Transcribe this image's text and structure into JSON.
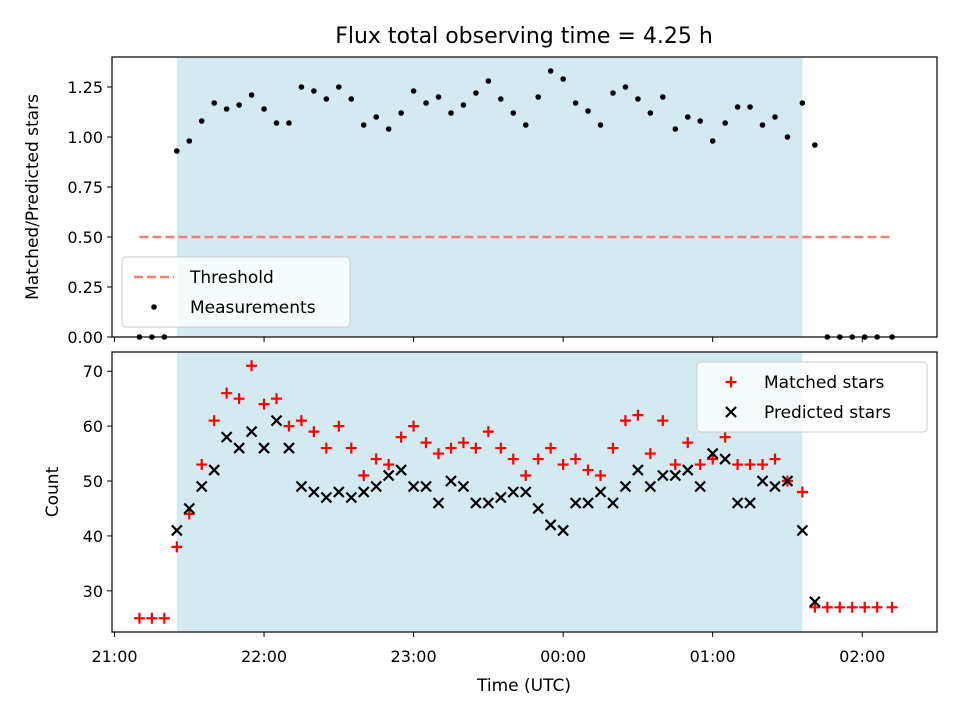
{
  "chart_data": {
    "type": "scatter",
    "title": "Flux total observing time = 4.25 h",
    "xlabel": "Time (UTC)",
    "x_ticks": [
      "21:00",
      "22:00",
      "23:00",
      "00:00",
      "01:00",
      "02:00"
    ],
    "x_range_hours": [
      20.9833,
      26.5
    ],
    "observing_window": {
      "start": "21:25",
      "end": "01:36",
      "color": "#d3eaf0"
    },
    "panels": [
      {
        "ylabel": "Matched/Predicted stars",
        "ylim": [
          0,
          1.4
        ],
        "y_ticks": [
          "0.00",
          "0.25",
          "0.50",
          "0.75",
          "1.00",
          "1.25"
        ],
        "legend": {
          "placement": "lower-left",
          "entries": [
            "Threshold",
            "Measurements"
          ]
        },
        "series": [
          {
            "name": "Threshold",
            "style": "dashed-line",
            "color": "#f08080",
            "x": [
              "21:10",
              "02:12"
            ],
            "y": [
              0.5,
              0.5
            ]
          },
          {
            "name": "Measurements",
            "style": "dot",
            "color": "#000000",
            "x": [
              "21:10",
              "21:15",
              "21:20",
              "21:25",
              "21:30",
              "21:35",
              "21:40",
              "21:45",
              "21:50",
              "21:55",
              "22:00",
              "22:05",
              "22:10",
              "22:15",
              "22:20",
              "22:25",
              "22:30",
              "22:35",
              "22:40",
              "22:45",
              "22:50",
              "22:55",
              "23:00",
              "23:05",
              "23:10",
              "23:15",
              "23:20",
              "23:25",
              "23:30",
              "23:35",
              "23:40",
              "23:45",
              "23:50",
              "23:55",
              "00:00",
              "00:05",
              "00:10",
              "00:15",
              "00:20",
              "00:25",
              "00:30",
              "00:35",
              "00:40",
              "00:45",
              "00:50",
              "00:55",
              "01:00",
              "01:05",
              "01:10",
              "01:15",
              "01:20",
              "01:25",
              "01:30",
              "01:36",
              "01:41",
              "01:46",
              "01:51",
              "01:56",
              "02:01",
              "02:06",
              "02:12"
            ],
            "y": [
              0.0,
              0.0,
              0.0,
              0.93,
              0.98,
              1.08,
              1.17,
              1.14,
              1.16,
              1.21,
              1.14,
              1.07,
              1.07,
              1.25,
              1.23,
              1.19,
              1.25,
              1.19,
              1.06,
              1.1,
              1.04,
              1.12,
              1.23,
              1.17,
              1.2,
              1.12,
              1.16,
              1.22,
              1.28,
              1.19,
              1.12,
              1.06,
              1.2,
              1.33,
              1.29,
              1.17,
              1.13,
              1.06,
              1.22,
              1.25,
              1.19,
              1.12,
              1.2,
              1.04,
              1.1,
              1.08,
              0.98,
              1.07,
              1.15,
              1.15,
              1.06,
              1.1,
              1.0,
              1.17,
              0.96,
              0.0,
              0.0,
              0.0,
              0.0,
              0.0,
              0.0
            ]
          }
        ]
      },
      {
        "ylabel": "Count",
        "ylim": [
          22.5,
          73.5
        ],
        "y_ticks": [
          "30",
          "40",
          "50",
          "60",
          "70"
        ],
        "legend": {
          "placement": "upper-right",
          "entries": [
            "Matched stars",
            "Predicted stars"
          ]
        },
        "series": [
          {
            "name": "Matched stars",
            "marker": "+",
            "color": "#ff0000",
            "x": [
              "21:10",
              "21:15",
              "21:20",
              "21:25",
              "21:30",
              "21:35",
              "21:40",
              "21:45",
              "21:50",
              "21:55",
              "22:00",
              "22:05",
              "22:10",
              "22:15",
              "22:20",
              "22:25",
              "22:30",
              "22:35",
              "22:40",
              "22:45",
              "22:50",
              "22:55",
              "23:00",
              "23:05",
              "23:10",
              "23:15",
              "23:20",
              "23:25",
              "23:30",
              "23:35",
              "23:40",
              "23:45",
              "23:50",
              "23:55",
              "00:00",
              "00:05",
              "00:10",
              "00:15",
              "00:20",
              "00:25",
              "00:30",
              "00:35",
              "00:40",
              "00:45",
              "00:50",
              "00:55",
              "01:00",
              "01:05",
              "01:10",
              "01:15",
              "01:20",
              "01:25",
              "01:30",
              "01:36",
              "01:41",
              "01:46",
              "01:51",
              "01:56",
              "02:01",
              "02:06",
              "02:12"
            ],
            "y": [
              25,
              25,
              25,
              38,
              44,
              53,
              61,
              66,
              65,
              71,
              64,
              65,
              60,
              61,
              59,
              56,
              60,
              56,
              51,
              54,
              53,
              58,
              60,
              57,
              55,
              56,
              57,
              56,
              59,
              56,
              54,
              51,
              54,
              56,
              53,
              54,
              52,
              51,
              56,
              61,
              62,
              55,
              61,
              53,
              57,
              53,
              54,
              58,
              53,
              53,
              53,
              54,
              50,
              48,
              27,
              27,
              27,
              27,
              27,
              27,
              27
            ]
          },
          {
            "name": "Predicted stars",
            "marker": "x",
            "color": "#000000",
            "x": [
              "21:25",
              "21:30",
              "21:35",
              "21:40",
              "21:45",
              "21:50",
              "21:55",
              "22:00",
              "22:05",
              "22:10",
              "22:15",
              "22:20",
              "22:25",
              "22:30",
              "22:35",
              "22:40",
              "22:45",
              "22:50",
              "22:55",
              "23:00",
              "23:05",
              "23:10",
              "23:15",
              "23:20",
              "23:25",
              "23:30",
              "23:35",
              "23:40",
              "23:45",
              "23:50",
              "23:55",
              "00:00",
              "00:05",
              "00:10",
              "00:15",
              "00:20",
              "00:25",
              "00:30",
              "00:35",
              "00:40",
              "00:45",
              "00:50",
              "00:55",
              "01:00",
              "01:05",
              "01:10",
              "01:15",
              "01:20",
              "01:25",
              "01:30",
              "01:36",
              "01:41"
            ],
            "y": [
              41,
              45,
              49,
              52,
              58,
              56,
              59,
              56,
              61,
              56,
              49,
              48,
              47,
              48,
              47,
              48,
              49,
              51,
              52,
              49,
              49,
              46,
              50,
              49,
              46,
              46,
              47,
              48,
              48,
              45,
              42,
              41,
              46,
              46,
              48,
              46,
              49,
              52,
              49,
              51,
              51,
              52,
              49,
              55,
              54,
              46,
              46,
              50,
              49,
              50,
              41,
              28
            ]
          }
        ]
      }
    ]
  }
}
